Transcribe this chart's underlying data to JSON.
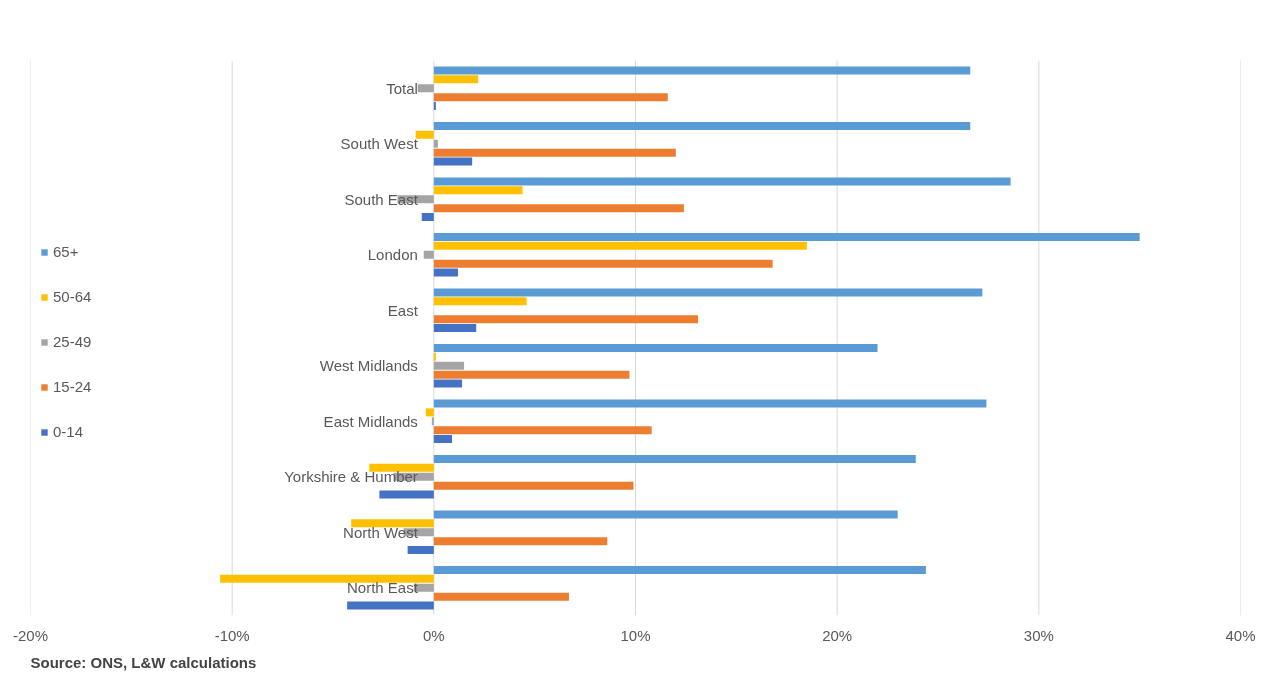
{
  "chart_data": {
    "type": "bar",
    "orientation": "horizontal",
    "categories": [
      "Total",
      "South West",
      "South East",
      "London",
      "East",
      "West Midlands",
      "East Midlands",
      "Yorkshire & Humber",
      "North West",
      "North East"
    ],
    "series": [
      {
        "name": "65+",
        "color": "#5b9bd5",
        "values": [
          26.6,
          26.6,
          28.6,
          35.0,
          27.2,
          22.0,
          27.4,
          23.9,
          23.0,
          24.4
        ]
      },
      {
        "name": "50-64",
        "color": "#ffc000",
        "values": [
          2.2,
          -0.9,
          4.4,
          18.5,
          4.6,
          0.1,
          -0.4,
          -3.2,
          -4.1,
          -10.6
        ]
      },
      {
        "name": "25-49",
        "color": "#a5a5a5",
        "values": [
          -0.8,
          0.2,
          -1.8,
          -0.5,
          0.0,
          1.5,
          -0.1,
          -2.0,
          -1.5,
          -1.0
        ]
      },
      {
        "name": "15-24",
        "color": "#ed7d31",
        "values": [
          11.6,
          12.0,
          12.4,
          16.8,
          13.1,
          9.7,
          10.8,
          9.9,
          8.6,
          6.7
        ]
      },
      {
        "name": "0-14",
        "color": "#4472c4",
        "values": [
          0.1,
          1.9,
          -0.6,
          1.2,
          2.1,
          1.4,
          0.9,
          -2.7,
          -1.3,
          -4.3
        ]
      }
    ],
    "xlim": [
      -20,
      40
    ],
    "xticks": [
      {
        "value": -20,
        "label": "-20%"
      },
      {
        "value": -10,
        "label": "-10%"
      },
      {
        "value": 0,
        "label": "0%"
      },
      {
        "value": 10,
        "label": "10%"
      },
      {
        "value": 20,
        "label": "20%"
      },
      {
        "value": 30,
        "label": "30%"
      },
      {
        "value": 40,
        "label": "40%"
      }
    ],
    "grid": "x",
    "legend": "left",
    "annotations": [
      "Source: ONS, L&W calculations"
    ]
  }
}
